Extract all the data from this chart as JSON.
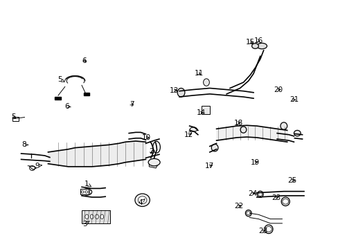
{
  "background_color": "#ffffff",
  "line_color": "#000000",
  "label_color": "#000000",
  "figure_width": 4.89,
  "figure_height": 3.6,
  "dpi": 100,
  "font_size": 7.5
}
